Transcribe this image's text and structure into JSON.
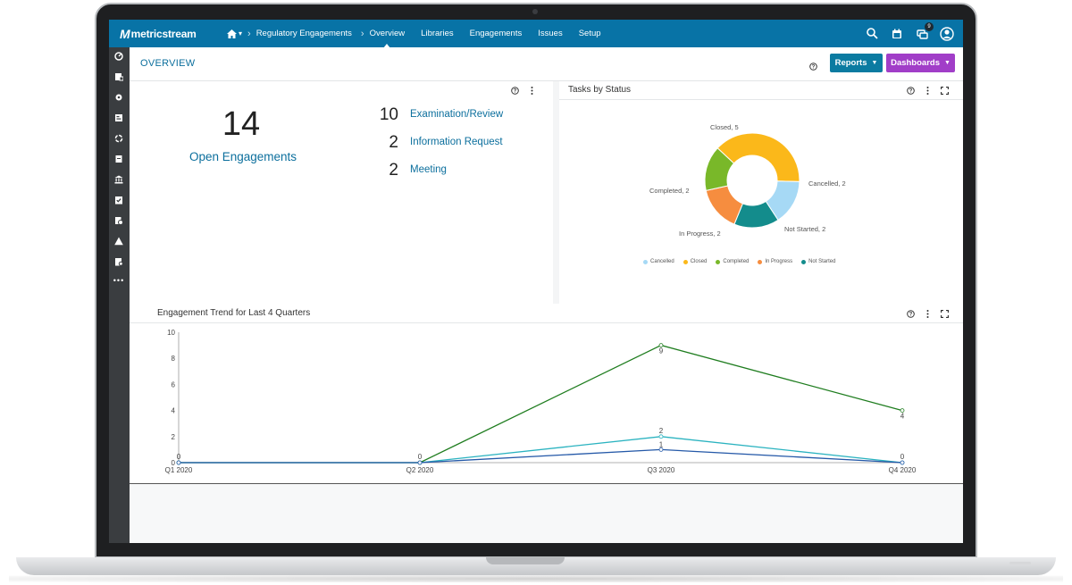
{
  "app": {
    "logo_mark": "M",
    "logo_text": "metricstream"
  },
  "nav": {
    "breadcrumb": "Regulatory Engagements",
    "links": [
      "Overview",
      "Libraries",
      "Engagements",
      "Issues",
      "Setup"
    ],
    "active": "Overview",
    "notification_count": "9"
  },
  "page": {
    "title": "OVERVIEW",
    "reports_label": "Reports",
    "dashboards_label": "Dashboards"
  },
  "colors": {
    "nav": "#0873a6",
    "link": "#0c6f9d",
    "reports_button": "#0b7ba1",
    "dashboards_button": "#a13ec8"
  },
  "summary": {
    "open_count": "14",
    "open_label": "Open Engagements",
    "types": [
      {
        "count": "10",
        "label": "Examination/Review"
      },
      {
        "count": "2",
        "label": "Information Request"
      },
      {
        "count": "2",
        "label": "Meeting"
      }
    ]
  },
  "tasks_panel": {
    "title": "Tasks by Status"
  },
  "trend_panel": {
    "title": "Engagement Trend for Last 4 Quarters"
  },
  "chart_data": [
    {
      "type": "pie",
      "title": "Tasks by Status",
      "donut": true,
      "slices": [
        {
          "label": "Closed",
          "value": 5,
          "slice_label": "Closed, 5",
          "color": "#fbb81a"
        },
        {
          "label": "Cancelled",
          "value": 2,
          "slice_label": "Cancelled, 2",
          "color": "#a6d9f5"
        },
        {
          "label": "Not Started",
          "value": 2,
          "slice_label": "Not Started, 2",
          "color": "#138c8c"
        },
        {
          "label": "In Progress",
          "value": 2,
          "slice_label": "In Progress, 2",
          "color": "#f68d3f"
        },
        {
          "label": "Completed",
          "value": 2,
          "slice_label": "Completed, 2",
          "color": "#79b829"
        }
      ],
      "legend": [
        {
          "label": "Cancelled",
          "color": "#a6d9f5"
        },
        {
          "label": "Closed",
          "color": "#fbb81a"
        },
        {
          "label": "Completed",
          "color": "#79b829"
        },
        {
          "label": "In Progress",
          "color": "#f68d3f"
        },
        {
          "label": "Not Started",
          "color": "#138c8c"
        }
      ],
      "legend_placement": "bottom"
    },
    {
      "type": "line",
      "title": "Engagement Trend for Last 4 Quarters",
      "categories": [
        "Q1 2020",
        "Q2 2020",
        "Q3 2020",
        "Q4 2020"
      ],
      "yticks": [
        0,
        2,
        4,
        6,
        8,
        10
      ],
      "ylim": [
        0,
        10
      ],
      "grid": false,
      "series": [
        {
          "values": [
            0,
            0,
            9,
            4
          ],
          "color": "#1f7d1f"
        },
        {
          "values": [
            0,
            0,
            2,
            0
          ],
          "color": "#2bb3c0"
        },
        {
          "values": [
            0,
            0,
            1,
            0
          ],
          "color": "#2559a8"
        }
      ],
      "data_labels": [
        {
          "category": "Q1 2020",
          "value": 0,
          "text": "0"
        },
        {
          "category": "Q2 2020",
          "value": 0,
          "text": "0"
        },
        {
          "category": "Q3 2020",
          "value": 9,
          "text": "9"
        },
        {
          "category": "Q3 2020",
          "value": 2,
          "text": "2"
        },
        {
          "category": "Q3 2020",
          "value": 1,
          "text": "1"
        },
        {
          "category": "Q4 2020",
          "value": 4,
          "text": "4"
        },
        {
          "category": "Q4 2020",
          "value": 0,
          "text": "0"
        }
      ]
    }
  ]
}
